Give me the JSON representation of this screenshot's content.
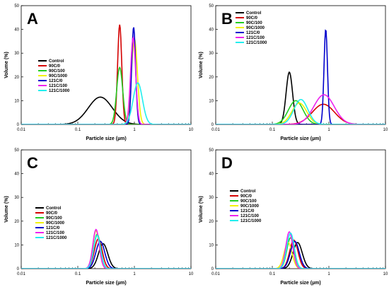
{
  "chart_data": [
    {
      "type": "line",
      "panel": "A",
      "xlabel": "Particle size (µm)",
      "ylabel": "Volume (%)",
      "xscale": "log",
      "xlim": [
        0.01,
        10
      ],
      "ylim": [
        0,
        50
      ],
      "xticks": [
        "0.01",
        "0.1",
        "1",
        "10"
      ],
      "yticks": [
        "0",
        "10",
        "20",
        "30",
        "40",
        "50"
      ],
      "legend_position": "left",
      "grid": false,
      "series": [
        {
          "name": "Control",
          "color": "#000000",
          "peak_x": 0.25,
          "peak_y": 11.5,
          "width": 0.52
        },
        {
          "name": "90C/0",
          "color": "#d40000",
          "peak_x": 0.55,
          "peak_y": 42,
          "width": 0.09
        },
        {
          "name": "90C/100",
          "color": "#22cc22",
          "peak_x": 0.55,
          "peak_y": 24,
          "width": 0.13
        },
        {
          "name": "90C/1000",
          "color": "#f2f200",
          "peak_x": 1.0,
          "peak_y": 36,
          "width": 0.13
        },
        {
          "name": "121C/0",
          "color": "#0000cc",
          "peak_x": 0.97,
          "peak_y": 41,
          "width": 0.085
        },
        {
          "name": "121C/100",
          "color": "#ee22ee",
          "peak_x": 0.95,
          "peak_y": 36.5,
          "width": 0.11
        },
        {
          "name": "121C/1000",
          "color": "#22eeee",
          "peak_x": 1.15,
          "peak_y": 17.5,
          "width": 0.2
        }
      ]
    },
    {
      "type": "line",
      "panel": "B",
      "xlabel": "Particle size (µm)",
      "ylabel": "Volume (%)",
      "xscale": "log",
      "xlim": [
        0.01,
        10
      ],
      "ylim": [
        0,
        50
      ],
      "xticks": [
        "0.01",
        "0.1",
        "1",
        "10"
      ],
      "yticks": [
        "0",
        "10",
        "20",
        "30",
        "40",
        "50"
      ],
      "legend_position": "top-left",
      "grid": false,
      "series": [
        {
          "name": "Control",
          "color": "#000000",
          "peak_x": 0.2,
          "peak_y": 22,
          "width": 0.14
        },
        {
          "name": "90C/0",
          "color": "#d40000",
          "peak_x": 0.8,
          "peak_y": 8.5,
          "width": 0.48
        },
        {
          "name": "90C/100",
          "color": "#22cc22",
          "peak_x": 0.26,
          "peak_y": 10,
          "width": 0.32
        },
        {
          "name": "90C/1000",
          "color": "#f2f200",
          "peak_x": 0.3,
          "peak_y": 9,
          "width": 0.32
        },
        {
          "name": "121C/0",
          "color": "#0000cc",
          "peak_x": 0.88,
          "peak_y": 40,
          "width": 0.075
        },
        {
          "name": "121C/100",
          "color": "#ee22ee",
          "peak_x": 0.82,
          "peak_y": 12.5,
          "width": 0.44
        },
        {
          "name": "121C/1000",
          "color": "#22eeee",
          "peak_x": 0.32,
          "peak_y": 10.5,
          "width": 0.3
        }
      ]
    },
    {
      "type": "line",
      "panel": "C",
      "xlabel": "Particle size (µm)",
      "ylabel": "Volume (%)",
      "xscale": "log",
      "xlim": [
        0.01,
        10
      ],
      "ylim": [
        0,
        50
      ],
      "xticks": [
        "0.01",
        "0.1",
        "1",
        "10"
      ],
      "yticks": [
        "0",
        "10",
        "20",
        "30",
        "40",
        "50"
      ],
      "legend_position": "left",
      "grid": false,
      "series": [
        {
          "name": "Control",
          "color": "#000000",
          "peak_x": 0.28,
          "peak_y": 10.5,
          "width": 0.2
        },
        {
          "name": "90C/0",
          "color": "#d40000",
          "peak_x": 0.23,
          "peak_y": 12.5,
          "width": 0.17
        },
        {
          "name": "90C/100",
          "color": "#22cc22",
          "peak_x": 0.22,
          "peak_y": 14.5,
          "width": 0.15
        },
        {
          "name": "90C/1000",
          "color": "#f2f200",
          "peak_x": 0.21,
          "peak_y": 16,
          "width": 0.14
        },
        {
          "name": "121C/0",
          "color": "#0000cc",
          "peak_x": 0.25,
          "peak_y": 11.5,
          "width": 0.19
        },
        {
          "name": "121C/100",
          "color": "#ee22ee",
          "peak_x": 0.21,
          "peak_y": 16.5,
          "width": 0.14
        },
        {
          "name": "121C/1000",
          "color": "#22eeee",
          "peak_x": 0.22,
          "peak_y": 14,
          "width": 0.15
        }
      ]
    },
    {
      "type": "line",
      "panel": "D",
      "xlabel": "Particle size (µm)",
      "ylabel": "Volume (%)",
      "xscale": "log",
      "xlim": [
        0.01,
        10
      ],
      "ylim": [
        0,
        50
      ],
      "xticks": [
        "0.01",
        "0.1",
        "1",
        "10"
      ],
      "yticks": [
        "0",
        "10",
        "20",
        "30",
        "40",
        "50"
      ],
      "legend_position": "left",
      "grid": false,
      "series": [
        {
          "name": "Control",
          "color": "#000000",
          "peak_x": 0.28,
          "peak_y": 11,
          "width": 0.2
        },
        {
          "name": "90C/0",
          "color": "#d40000",
          "peak_x": 0.24,
          "peak_y": 12,
          "width": 0.18
        },
        {
          "name": "90C/100",
          "color": "#22cc22",
          "peak_x": 0.21,
          "peak_y": 13,
          "width": 0.16
        },
        {
          "name": "90C/1000",
          "color": "#f2f200",
          "peak_x": 0.19,
          "peak_y": 11,
          "width": 0.17
        },
        {
          "name": "121C/0",
          "color": "#0000cc",
          "peak_x": 0.25,
          "peak_y": 11.5,
          "width": 0.19
        },
        {
          "name": "121C/100",
          "color": "#ee22ee",
          "peak_x": 0.2,
          "peak_y": 15.5,
          "width": 0.15
        },
        {
          "name": "121C/1000",
          "color": "#22eeee",
          "peak_x": 0.21,
          "peak_y": 15,
          "width": 0.16
        }
      ]
    }
  ]
}
